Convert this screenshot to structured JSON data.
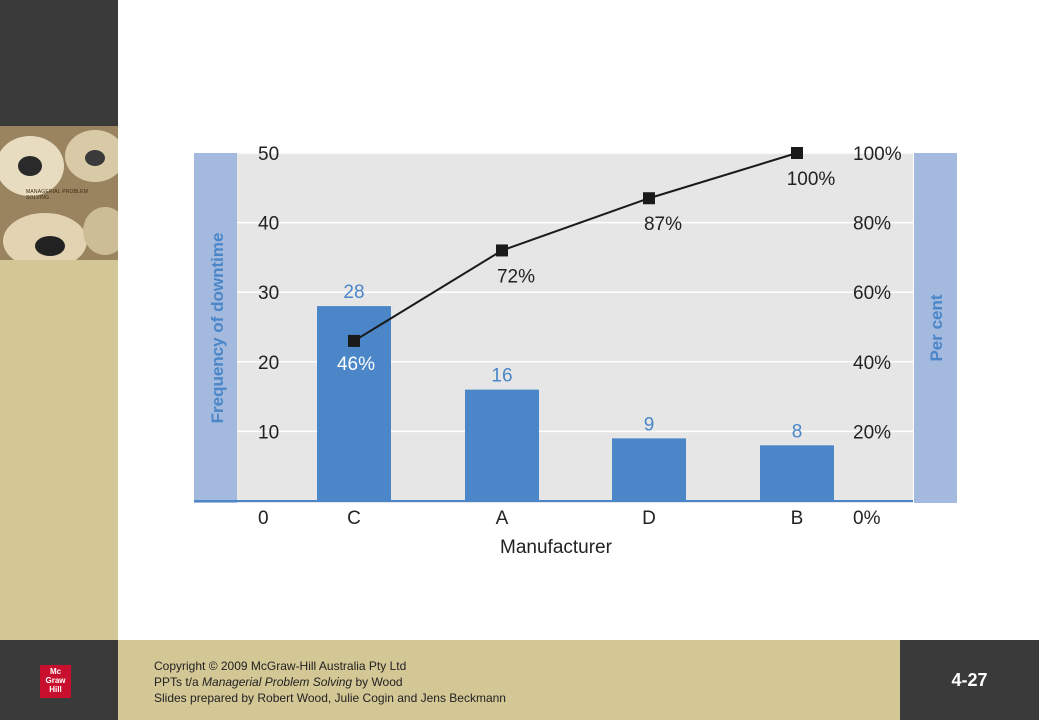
{
  "colors": {
    "bar": "#4a86c8",
    "panel": "#e6e6e6",
    "side_band": "#a3b9de",
    "label_blue": "#4a86c8",
    "line": "#1a1a1a"
  },
  "cover": {
    "title": "MANAGERIAL PROBLEM SOLVING"
  },
  "chart_data": {
    "type": "bar",
    "categories": [
      "C",
      "A",
      "D",
      "B"
    ],
    "values": [
      28,
      16,
      9,
      8
    ],
    "data_labels": [
      "28",
      "16",
      "9",
      "8"
    ],
    "xlabel": "Manufacturer",
    "ylabel": "Frequency of downtime",
    "y2label": "Per cent",
    "ylim": [
      0,
      50
    ],
    "y_ticks": [
      "0",
      "10",
      "20",
      "30",
      "40",
      "50"
    ],
    "y2_ticks": [
      "0%",
      "20%",
      "40%",
      "60%",
      "80%",
      "100%"
    ],
    "y2lim": [
      0,
      100
    ],
    "grid": true,
    "cumulative": {
      "type": "line",
      "values": [
        46,
        72,
        87,
        100
      ],
      "labels": [
        "46%",
        "72%",
        "87%",
        "100%"
      ]
    }
  },
  "footer": {
    "logo": "Mc Graw Hill",
    "copyright_line1": "Copyright © 2009 McGraw-Hill Australia Pty Ltd",
    "copyright_line2_prefix": "PPTs t/a ",
    "copyright_line2_title": "Managerial Problem Solving",
    "copyright_line2_suffix": " by Wood",
    "copyright_line3": "Slides prepared by Robert Wood, Julie Cogin and Jens Beckmann",
    "page_number": "4-27"
  }
}
